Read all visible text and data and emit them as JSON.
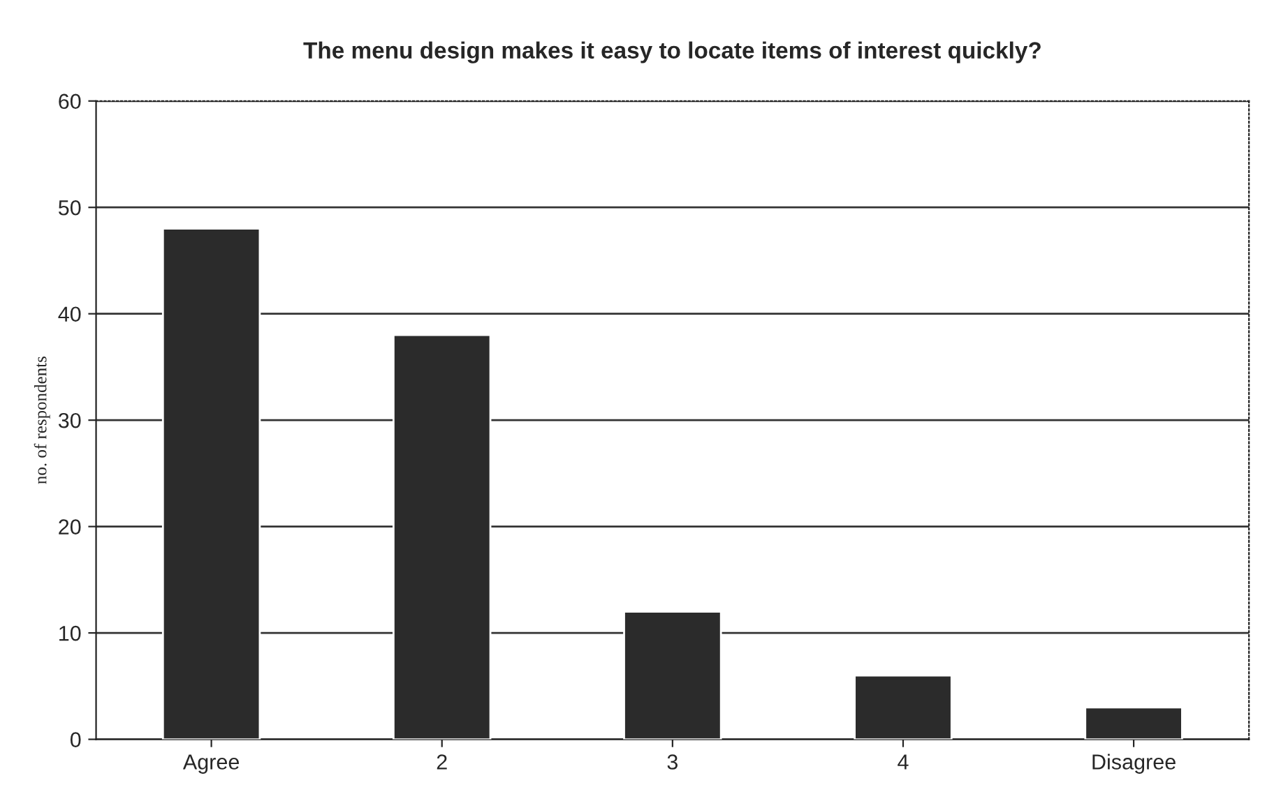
{
  "chart_data": {
    "type": "bar",
    "title": "The menu design makes it easy to locate items of interest quickly?",
    "ylabel": "no. of respondents",
    "categories": [
      "Agree",
      "2",
      "3",
      "4",
      "Disagree"
    ],
    "values": [
      48,
      38,
      12,
      6,
      3
    ],
    "color": "#2b2b2b",
    "ylim": [
      0,
      60
    ],
    "yticks": [
      0,
      10,
      20,
      30,
      40,
      50,
      60
    ],
    "grid": "y"
  }
}
